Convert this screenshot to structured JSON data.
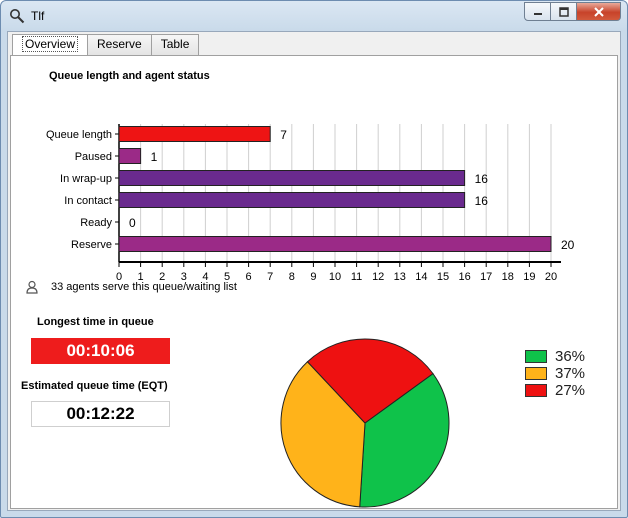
{
  "window": {
    "title": "Tlf",
    "app_icon": "search-icon"
  },
  "tabs": [
    {
      "label": "Overview",
      "active": true
    },
    {
      "label": "Reserve",
      "active": false
    },
    {
      "label": "Table",
      "active": false
    }
  ],
  "chart_data": {
    "type": "bar",
    "orientation": "horizontal",
    "title": "Queue length and agent status",
    "categories": [
      "Queue length",
      "Paused",
      "In wrap-up",
      "In contact",
      "Ready",
      "Reserve"
    ],
    "values": [
      7,
      1,
      16,
      16,
      0,
      20
    ],
    "colors": [
      "#ee1414",
      "#9b2a87",
      "#6a2a8e",
      "#6a2a8e",
      "#9b2a87",
      "#9b2a87"
    ],
    "xlim": [
      0,
      20
    ],
    "xticks": [
      0,
      1,
      2,
      3,
      4,
      5,
      6,
      7,
      8,
      9,
      10,
      11,
      12,
      13,
      14,
      15,
      16,
      17,
      18,
      19,
      20
    ],
    "grid": true
  },
  "agents": {
    "text": "33 agents serve this queue/waiting list",
    "icon": "user-icon"
  },
  "longest": {
    "label": "Longest time in queue",
    "value": "00:10:06",
    "color": "#ee1c1c"
  },
  "eqt": {
    "label": "Estimated queue time (EQT)",
    "value": "00:12:22"
  },
  "pie": {
    "slices": [
      {
        "label": "36%",
        "value": 36,
        "color": "#0fc24a"
      },
      {
        "label": "37%",
        "value": 37,
        "color": "#ffb31a"
      },
      {
        "label": "27%",
        "value": 27,
        "color": "#ee1111"
      }
    ]
  }
}
